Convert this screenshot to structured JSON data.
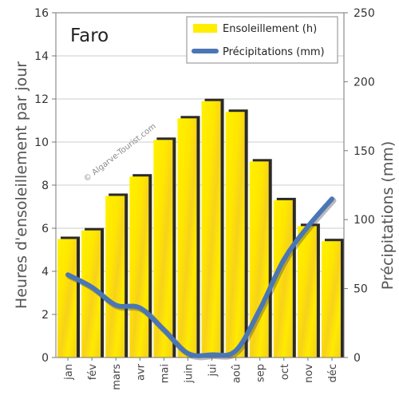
{
  "chart_data": {
    "type": "bar",
    "title": "Faro",
    "categories": [
      "jan",
      "fév",
      "mars",
      "avr",
      "mai",
      "juin",
      "jui",
      "aoû",
      "sep",
      "oct",
      "nov",
      "déc"
    ],
    "series": [
      {
        "name": "Ensoleillement (h)",
        "type": "bar",
        "axis": "left",
        "color": "#ffee00",
        "values": [
          5.5,
          5.9,
          7.5,
          8.4,
          10.1,
          11.1,
          11.9,
          11.4,
          9.1,
          7.3,
          6.1,
          5.4
        ]
      },
      {
        "name": "Précipitations (mm)",
        "type": "line",
        "axis": "right",
        "color": "#4a76b5",
        "values": [
          60,
          51,
          38,
          36,
          20,
          3,
          2,
          5,
          35,
          71,
          95,
          115
        ]
      }
    ],
    "ylabel": "Heures d'ensoleillement par jour",
    "ylim": [
      0,
      16
    ],
    "yticks": [
      "0",
      "2",
      "4",
      "6",
      "8",
      "10",
      "12",
      "14",
      "16"
    ],
    "y2label": "Précipitations (mm)",
    "y2lim": [
      0,
      250
    ],
    "y2ticks": [
      "0",
      "50",
      "100",
      "150",
      "200",
      "250"
    ],
    "grid": true,
    "legend_position": "top-right",
    "watermark": "© Algarve-Tourist.com"
  }
}
